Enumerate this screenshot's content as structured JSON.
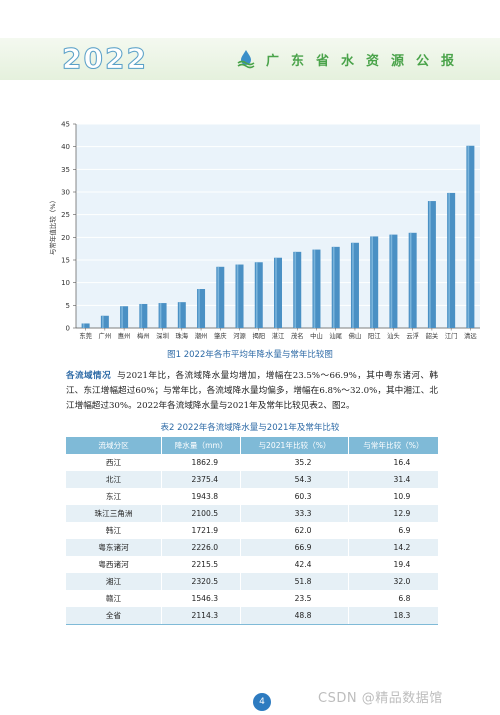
{
  "header": {
    "year": "2022",
    "title": "广东省水资源公报",
    "logo_icon": "water-resources-logo-icon"
  },
  "chart_data": {
    "type": "bar",
    "title": "",
    "caption": "图1   2022年各市平均年降水量与常年比较图",
    "xlabel": "",
    "ylabel": "与常年值比较（%）",
    "ylim": [
      0,
      45
    ],
    "yticks": [
      0,
      5,
      10,
      15,
      20,
      25,
      30,
      35,
      40,
      45
    ],
    "grid": true,
    "bar_color": "#4a90c4",
    "categories": [
      "东莞",
      "广州",
      "惠州",
      "梅州",
      "深圳",
      "珠海",
      "潮州",
      "肇庆",
      "河源",
      "揭阳",
      "湛江",
      "茂名",
      "中山",
      "汕尾",
      "佛山",
      "阳江",
      "汕头",
      "云浮",
      "韶关",
      "江门",
      "清远"
    ],
    "values": [
      1.0,
      2.7,
      4.8,
      5.3,
      5.5,
      5.7,
      8.6,
      13.5,
      14.0,
      14.5,
      15.5,
      16.8,
      17.3,
      17.9,
      18.8,
      20.2,
      20.6,
      21.0,
      28.0,
      29.8,
      40.2
    ]
  },
  "paragraph": {
    "lead": "各流域情况",
    "text": "与2021年比，各流域降水量均增加，增幅在23.5%～66.9%，其中粤东诸河、韩江、东江增幅超过60%；与常年比，各流域降水量均偏多，增幅在6.8%～32.0%，其中湘江、北江增幅超过30%。2022年各流域降水量与2021年及常年比较见表2、图2。"
  },
  "table": {
    "caption": "表2   2022年各流域降水量与2021年及常年比较",
    "headers": [
      "流域分区",
      "降水量（mm）",
      "与2021年比较（%）",
      "与常年比较（%）"
    ],
    "rows": [
      [
        "西江",
        "1862.9",
        "35.2",
        "16.4"
      ],
      [
        "北江",
        "2375.4",
        "54.3",
        "31.4"
      ],
      [
        "东江",
        "1943.8",
        "60.3",
        "10.9"
      ],
      [
        "珠江三角洲",
        "2100.5",
        "33.3",
        "12.9"
      ],
      [
        "韩江",
        "1721.9",
        "62.0",
        "6.9"
      ],
      [
        "粤东诸河",
        "2226.0",
        "66.9",
        "14.2"
      ],
      [
        "粤西诸河",
        "2215.5",
        "42.4",
        "19.4"
      ],
      [
        "湘江",
        "2320.5",
        "51.8",
        "32.0"
      ],
      [
        "赣江",
        "1546.3",
        "23.5",
        "6.8"
      ],
      [
        "全省",
        "2114.3",
        "48.8",
        "18.3"
      ]
    ]
  },
  "footer": {
    "page_number": "4",
    "watermark": "CSDN @精品数据馆"
  }
}
